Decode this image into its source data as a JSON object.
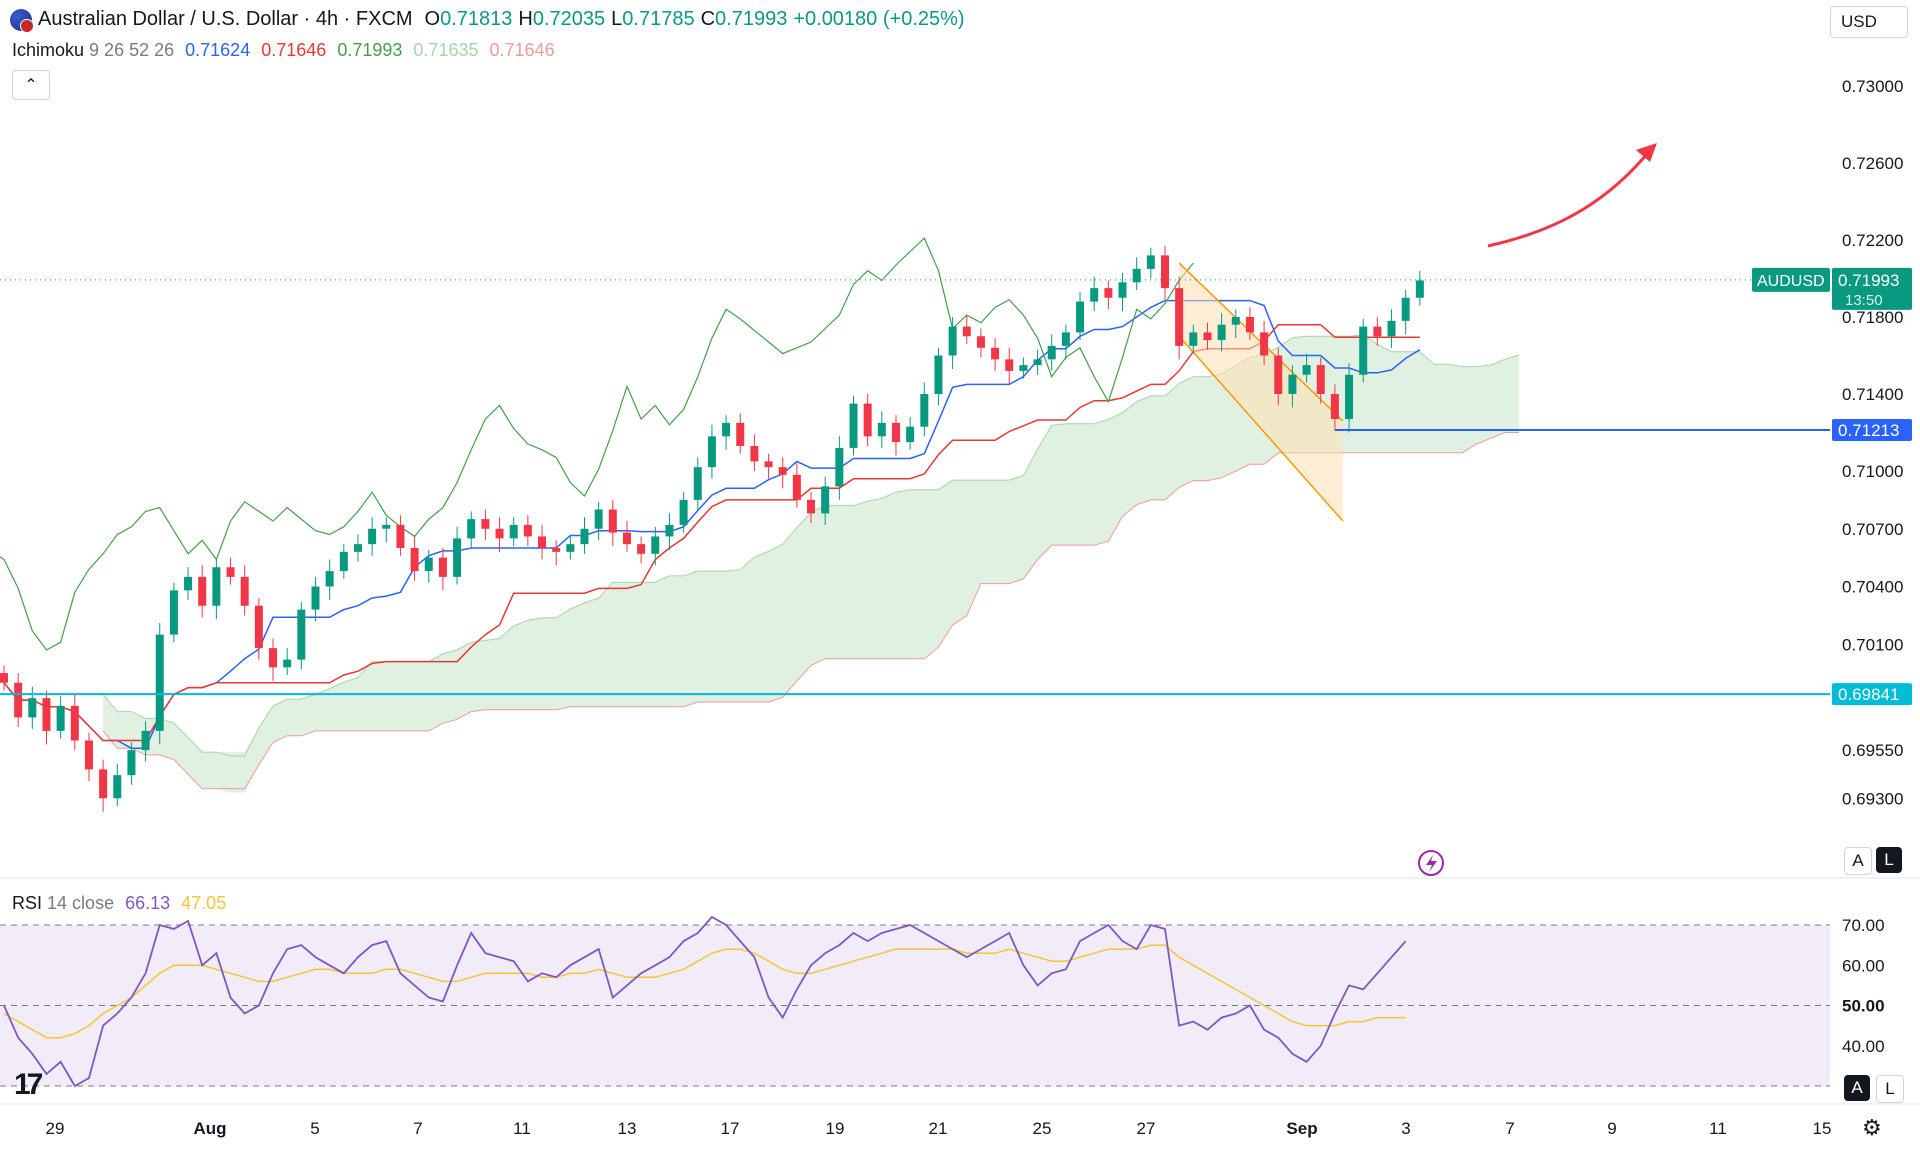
{
  "header": {
    "symbol_title": "Australian Dollar / U.S. Dollar · 4h · FXCM",
    "ohlc": {
      "o_label": "O",
      "o": "0.71813",
      "h_label": "H",
      "h": "0.72035",
      "l_label": "L",
      "l": "0.71785",
      "c_label": "C",
      "c": "0.71993",
      "change": "+0.00180 (+0.25%)"
    },
    "currency": "USD",
    "collapse_icon": "chevron-up-icon"
  },
  "indicator": {
    "name": "Ichimoku",
    "params": "9 26 52 26",
    "values": [
      "0.71624",
      "0.71646",
      "0.71993",
      "0.71635",
      "0.71646"
    ],
    "colors": [
      "#2962ff",
      "#e53935",
      "#43a047",
      "#a5d6a7",
      "#ef9a9a"
    ]
  },
  "price_axis": {
    "ticks": [
      "0.73000",
      "0.72600",
      "0.72200",
      "0.71800",
      "0.71400",
      "0.71000",
      "0.70700",
      "0.70400",
      "0.70100",
      "0.69550",
      "0.69300"
    ],
    "labels": {
      "symbol": "AUDUSD",
      "last": "0.71993",
      "countdown": "13:50",
      "level_1": "0.71213",
      "level_2": "0.69841"
    }
  },
  "rsi": {
    "name": "RSI",
    "params": "14 close",
    "value": "66.13",
    "ma_value": "47.05",
    "ticks": [
      "70.00",
      "60.00",
      "50.00",
      "40.00"
    ]
  },
  "time_axis": [
    "29",
    "Aug",
    "5",
    "7",
    "11",
    "13",
    "17",
    "19",
    "21",
    "25",
    "27",
    "Sep",
    "3",
    "7",
    "9",
    "11",
    "15"
  ],
  "buttons": {
    "auto": "A",
    "log": "L"
  },
  "colors": {
    "up": "#089981",
    "down": "#f23645",
    "tenkan": "#2962ff",
    "kijun": "#e53935",
    "chikou": "#43a047",
    "level_1": "#2962ff",
    "level_2": "#00bcd4",
    "arrow": "#f23645",
    "rsi_line": "#7e57c2",
    "rsi_ma": "#f7c533"
  },
  "chart_data": [
    {
      "type": "candlestick",
      "title": "Australian Dollar / U.S. Dollar · 4h · FXCM",
      "ylim": [
        0.6915,
        0.7318
      ],
      "x_range": [
        "Jul 28",
        "Sep 16"
      ],
      "candles_close": [
        0.699,
        0.6972,
        0.6982,
        0.6965,
        0.6978,
        0.696,
        0.6945,
        0.693,
        0.6942,
        0.6955,
        0.6965,
        0.7015,
        0.7038,
        0.7045,
        0.703,
        0.705,
        0.7045,
        0.703,
        0.7008,
        0.6998,
        0.7002,
        0.7028,
        0.704,
        0.7048,
        0.7058,
        0.7062,
        0.707,
        0.7072,
        0.706,
        0.7048,
        0.7055,
        0.7045,
        0.7065,
        0.7075,
        0.707,
        0.7065,
        0.7072,
        0.7066,
        0.706,
        0.7058,
        0.7062,
        0.707,
        0.708,
        0.7068,
        0.7062,
        0.7057,
        0.7066,
        0.7072,
        0.7085,
        0.7102,
        0.7118,
        0.7125,
        0.7113,
        0.7105,
        0.7102,
        0.7098,
        0.7085,
        0.7078,
        0.7092,
        0.7112,
        0.7135,
        0.7118,
        0.7125,
        0.7115,
        0.7123,
        0.714,
        0.716,
        0.7175,
        0.717,
        0.7164,
        0.7158,
        0.7152,
        0.7155,
        0.7158,
        0.7165,
        0.7172,
        0.7188,
        0.7195,
        0.719,
        0.7198,
        0.7205,
        0.7212,
        0.7195,
        0.7165,
        0.7172,
        0.7168,
        0.7176,
        0.718,
        0.7172,
        0.716,
        0.714,
        0.715,
        0.7155,
        0.714,
        0.7127,
        0.715,
        0.7175,
        0.717,
        0.7178,
        0.719,
        0.7199
      ],
      "ichimoku": {
        "tenkan": "0.71624",
        "kijun": "0.71646",
        "chikou": "0.71993",
        "span_a": "0.71635",
        "span_b": "0.71646"
      },
      "levels": [
        0.71213,
        0.69841
      ],
      "last_price": 0.71993,
      "annotations": [
        "descending channel (Aug 28 – Sep 2)",
        "bullish arrow"
      ]
    },
    {
      "type": "line",
      "title": "RSI 14 close",
      "ylim": [
        30,
        74
      ],
      "hlines": [
        70,
        50,
        30
      ],
      "series": [
        {
          "name": "RSI",
          "last": 66.13,
          "values": [
            50,
            42,
            38,
            33,
            36,
            30,
            32,
            45,
            48,
            52,
            58,
            70,
            69,
            71,
            60,
            63,
            52,
            48,
            50,
            58,
            64,
            65,
            62,
            60,
            58,
            62,
            65,
            66,
            58,
            55,
            52,
            51,
            60,
            68,
            63,
            62,
            61,
            56,
            58,
            57,
            60,
            62,
            64,
            52,
            55,
            58,
            60,
            62,
            66,
            68,
            72,
            70,
            66,
            62,
            52,
            47,
            54,
            60,
            63,
            65,
            68,
            66,
            68,
            69,
            70,
            68,
            66,
            64,
            62,
            64,
            66,
            68,
            60,
            55,
            58,
            59,
            66,
            68,
            70,
            66,
            64,
            70,
            69,
            45,
            46,
            44,
            47,
            48,
            50,
            44,
            42,
            38,
            36,
            40,
            48,
            55,
            54,
            58,
            62,
            66
          ]
        },
        {
          "name": "RSI MA",
          "last": 47.05,
          "values": [
            48,
            46,
            44,
            42,
            42,
            43,
            45,
            48,
            50,
            52,
            55,
            58,
            60,
            60,
            60,
            59,
            58,
            57,
            56,
            56,
            57,
            58,
            59,
            59,
            58,
            58,
            58,
            59,
            59,
            58,
            57,
            56,
            56,
            57,
            58,
            58,
            58,
            58,
            57,
            57,
            58,
            58,
            59,
            58,
            57,
            57,
            57,
            58,
            59,
            61,
            63,
            64,
            64,
            63,
            61,
            59,
            58,
            58,
            59,
            60,
            61,
            62,
            63,
            64,
            64,
            64,
            64,
            64,
            63,
            63,
            63,
            64,
            63,
            62,
            61,
            61,
            62,
            63,
            64,
            64,
            64,
            65,
            65,
            62,
            60,
            58,
            56,
            54,
            52,
            50,
            48,
            46,
            45,
            45,
            45,
            46,
            46,
            47,
            47,
            47
          ]
        }
      ]
    }
  ]
}
